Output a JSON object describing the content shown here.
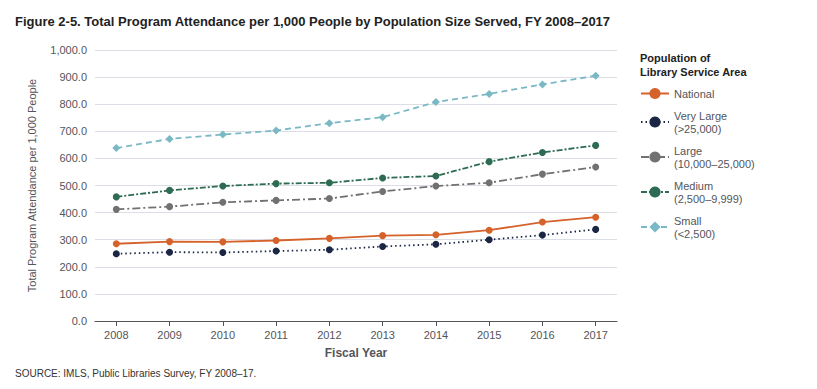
{
  "chart_data": {
    "type": "line",
    "title": "Figure 2-5. Total Program Attendance per 1,000 People by Population Size Served, FY 2008–2017",
    "xlabel": "Fiscal Year",
    "ylabel": "Total Program Attendance per 1,000 People",
    "source": "SOURCE: IMLS, Public Libraries Survey, FY 2008–17.",
    "legend_title": "Population of\nLibrary Service Area",
    "x": [
      2008,
      2009,
      2010,
      2011,
      2012,
      2013,
      2014,
      2015,
      2016,
      2017
    ],
    "xlim": [
      2007.6,
      2017.4
    ],
    "xticks": [
      2008,
      2009,
      2010,
      2011,
      2012,
      2013,
      2014,
      2015,
      2016,
      2017
    ],
    "ylim": [
      0,
      1000
    ],
    "yticks": [
      {
        "value": 0,
        "label": "0.0"
      },
      {
        "value": 100,
        "label": "100.0"
      },
      {
        "value": 200,
        "label": "200.0"
      },
      {
        "value": 300,
        "label": "300.0"
      },
      {
        "value": 400,
        "label": "400.0"
      },
      {
        "value": 500,
        "label": "500.0"
      },
      {
        "value": 600,
        "label": "600.0"
      },
      {
        "value": 700,
        "label": "700.0"
      },
      {
        "value": 800,
        "label": "800.0"
      },
      {
        "value": 900,
        "label": "900.0"
      },
      {
        "value": 1000,
        "label": "1,000.0"
      }
    ],
    "grid": true,
    "legend": "right",
    "series": [
      {
        "name": "National",
        "color": "#d4622a",
        "marker": "circle",
        "line_style": "solid",
        "values": [
          285,
          293,
          292,
          297,
          305,
          315,
          318,
          335,
          365,
          383
        ]
      },
      {
        "name": "Very Large\n(>25,000)",
        "color": "#1a2644",
        "marker": "circle",
        "line_style": "dotted",
        "values": [
          248,
          254,
          253,
          258,
          263,
          275,
          283,
          300,
          317,
          338
        ]
      },
      {
        "name": "Large\n(10,000–25,000)",
        "color": "#717171",
        "marker": "circle",
        "line_style": "dashdot",
        "values": [
          412,
          422,
          438,
          445,
          452,
          478,
          498,
          510,
          542,
          568
        ]
      },
      {
        "name": "Medium\n(2,500–9,999)",
        "color": "#2d6b52",
        "marker": "circle",
        "line_style": "densely_dashdot",
        "values": [
          458,
          482,
          498,
          507,
          510,
          528,
          535,
          588,
          622,
          648
        ]
      },
      {
        "name": "Small\n(<2,500)",
        "color": "#7ab8c5",
        "marker": "diamond",
        "line_style": "dashed",
        "values": [
          638,
          672,
          688,
          703,
          730,
          752,
          808,
          838,
          873,
          905
        ]
      }
    ]
  }
}
